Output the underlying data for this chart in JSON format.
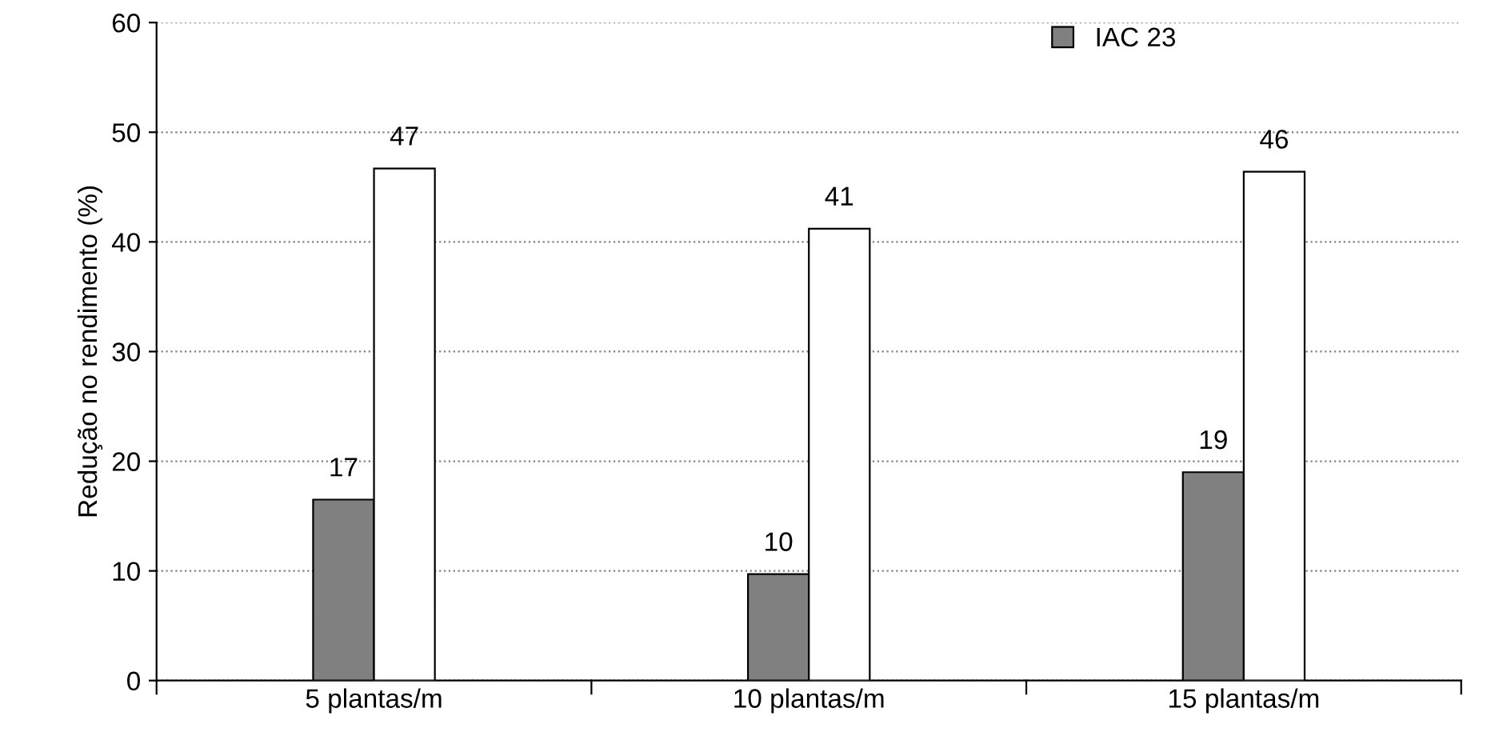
{
  "chart_data": {
    "type": "bar",
    "ylabel": "Redução no rendimento (%)",
    "categories": [
      "5 plantas/m",
      "10 plantas/m",
      "15 plantas/m"
    ],
    "series": [
      {
        "name": "IAC 23",
        "color": "#808080",
        "values": [
          16.5,
          9.7,
          19.0
        ],
        "value_labels": [
          "17",
          "10",
          "19"
        ]
      },
      {
        "color": "#ffffff",
        "values": [
          46.7,
          41.2,
          46.4
        ],
        "value_labels": [
          "47",
          "41",
          "46"
        ]
      }
    ],
    "ylim": [
      0,
      60
    ],
    "yticks": [
      0,
      10,
      20,
      30,
      40,
      50,
      60
    ],
    "grid": "y",
    "legend": "top right"
  }
}
